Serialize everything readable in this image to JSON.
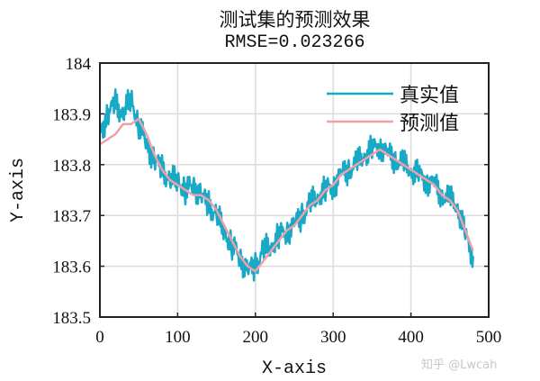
{
  "chart_data": {
    "type": "line",
    "title": "测试集的预测效果",
    "subtitle": "RMSE=0.023266",
    "xlabel": "X-axis",
    "ylabel": "Y-axis",
    "xlim": [
      0,
      500
    ],
    "ylim": [
      183.5,
      184
    ],
    "xticks": [
      0,
      100,
      200,
      300,
      400,
      500
    ],
    "yticks": [
      183.5,
      183.6,
      183.7,
      183.8,
      183.9,
      184
    ],
    "ytick_labels": [
      "183.5",
      "183.6",
      "183.7",
      "183.8",
      "183.9",
      "184"
    ],
    "grid": true,
    "legend_position": "upper right",
    "series": [
      {
        "name": "真实值",
        "color": "#17a9c6",
        "x": [
          0,
          10,
          20,
          30,
          40,
          50,
          60,
          70,
          80,
          90,
          100,
          110,
          120,
          130,
          140,
          150,
          160,
          170,
          180,
          190,
          200,
          210,
          220,
          230,
          240,
          250,
          260,
          270,
          280,
          290,
          300,
          310,
          320,
          330,
          340,
          350,
          360,
          370,
          380,
          390,
          400,
          410,
          420,
          430,
          440,
          450,
          460,
          470,
          480
        ],
        "values": [
          183.86,
          183.9,
          183.92,
          183.9,
          183.93,
          183.88,
          183.84,
          183.81,
          183.79,
          183.77,
          183.77,
          183.75,
          183.76,
          183.74,
          183.72,
          183.7,
          183.67,
          183.64,
          183.62,
          183.59,
          183.6,
          183.63,
          183.64,
          183.66,
          183.67,
          183.68,
          183.7,
          183.72,
          183.74,
          183.75,
          183.76,
          183.78,
          183.79,
          183.8,
          183.82,
          183.83,
          183.84,
          183.82,
          183.81,
          183.8,
          183.79,
          183.78,
          183.77,
          183.76,
          183.74,
          183.73,
          183.72,
          183.66,
          183.62
        ]
      },
      {
        "name": "预测值",
        "color": "#f0a0a8",
        "x": [
          0,
          10,
          20,
          30,
          40,
          50,
          60,
          70,
          80,
          90,
          100,
          110,
          120,
          130,
          140,
          150,
          160,
          170,
          180,
          190,
          200,
          210,
          220,
          230,
          240,
          250,
          260,
          270,
          280,
          290,
          300,
          310,
          320,
          330,
          340,
          350,
          360,
          370,
          380,
          390,
          400,
          410,
          420,
          430,
          440,
          450,
          460,
          470,
          480
        ],
        "values": [
          183.84,
          183.85,
          183.86,
          183.88,
          183.88,
          183.89,
          183.86,
          183.82,
          183.79,
          183.77,
          183.76,
          183.75,
          183.74,
          183.74,
          183.73,
          183.71,
          183.68,
          183.65,
          183.62,
          183.6,
          183.59,
          183.61,
          183.63,
          183.65,
          183.67,
          183.68,
          183.7,
          183.72,
          183.73,
          183.75,
          183.76,
          183.78,
          183.79,
          183.8,
          183.81,
          183.82,
          183.83,
          183.82,
          183.81,
          183.8,
          183.79,
          183.78,
          183.77,
          183.76,
          183.74,
          183.73,
          183.71,
          183.67,
          183.63
        ]
      }
    ]
  },
  "watermark": "知乎 @Lwcah"
}
